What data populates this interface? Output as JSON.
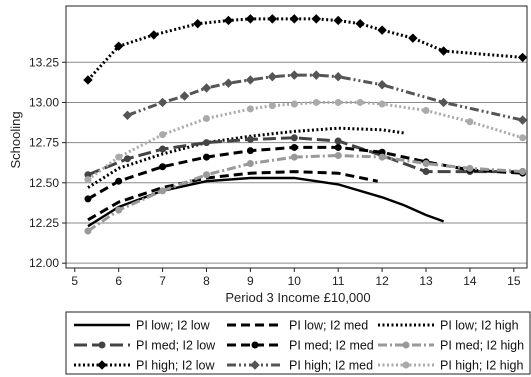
{
  "chart_data": {
    "type": "line",
    "xlabel": "Period 3 Income £10,000",
    "ylabel": "Schooling",
    "xlim": [
      4.8,
      15.3
    ],
    "ylim": [
      11.97,
      13.6
    ],
    "x_ticks": [
      "5",
      "6",
      "7",
      "8",
      "9",
      "10",
      "11",
      "12",
      "13",
      "14",
      "15"
    ],
    "y_ticks": [
      "12.00",
      "12.25",
      "12.50",
      "12.75",
      "13.00",
      "13.25"
    ],
    "grid": "horizontal",
    "legend_position": "bottom",
    "series": [
      {
        "name": "PI low; I2 low",
        "style": "solid",
        "marker": "none",
        "color": "#000000",
        "x": [
          5.3,
          6,
          7,
          8,
          9,
          10,
          11,
          12,
          12.5,
          13,
          13.4
        ],
        "y": [
          12.23,
          12.35,
          12.45,
          12.51,
          12.53,
          12.53,
          12.49,
          12.41,
          12.36,
          12.3,
          12.26
        ]
      },
      {
        "name": "PI low; I2 med",
        "style": "dashed",
        "marker": "none",
        "color": "#000000",
        "x": [
          5.3,
          6,
          7,
          8,
          9,
          10,
          11,
          11.9
        ],
        "y": [
          12.27,
          12.38,
          12.47,
          12.53,
          12.56,
          12.57,
          12.56,
          12.51
        ]
      },
      {
        "name": "PI low; I2 high",
        "style": "dotted",
        "marker": "none",
        "color": "#000000",
        "x": [
          5.3,
          6,
          7,
          8,
          9,
          10,
          11,
          12,
          12.5
        ],
        "y": [
          12.47,
          12.59,
          12.68,
          12.75,
          12.79,
          12.82,
          12.84,
          12.83,
          12.81
        ]
      },
      {
        "name": "PI med; I2 low",
        "style": "longdash",
        "marker": "circle",
        "color": "#444444",
        "x": [
          5.3,
          6.2,
          7,
          8,
          9,
          10,
          11,
          12,
          13,
          14,
          15.2
        ],
        "y": [
          12.55,
          12.65,
          12.71,
          12.75,
          12.77,
          12.78,
          12.76,
          12.67,
          12.57,
          12.57,
          12.57
        ]
      },
      {
        "name": "PI med; I2 med",
        "style": "dashed",
        "marker": "circle",
        "color": "#000000",
        "x": [
          5.3,
          6,
          7,
          8,
          9,
          10,
          11,
          12,
          13,
          14,
          15.2
        ],
        "y": [
          12.4,
          12.51,
          12.6,
          12.66,
          12.7,
          12.72,
          12.72,
          12.69,
          12.63,
          12.58,
          12.56
        ]
      },
      {
        "name": "PI med; I2 high",
        "style": "dashdot",
        "marker": "circle",
        "color": "#999999",
        "x": [
          5.3,
          6,
          7,
          8,
          9,
          10,
          11,
          12,
          13,
          14,
          15.2
        ],
        "y": [
          12.2,
          12.33,
          12.45,
          12.55,
          12.62,
          12.66,
          12.67,
          12.66,
          12.62,
          12.59,
          12.57
        ]
      },
      {
        "name": "PI high; I2 low",
        "style": "dotted",
        "marker": "diamond",
        "color": "#000000",
        "x": [
          5.3,
          6,
          6.8,
          7.8,
          8.5,
          9,
          9.5,
          10,
          10.5,
          11,
          11.5,
          12,
          12.7,
          13.4,
          15.2
        ],
        "y": [
          13.14,
          13.35,
          13.42,
          13.49,
          13.51,
          13.52,
          13.52,
          13.52,
          13.52,
          13.51,
          13.49,
          13.45,
          13.4,
          13.32,
          13.28
        ]
      },
      {
        "name": "PI high; I2 med",
        "style": "dashdotdot",
        "marker": "diamond",
        "color": "#555555",
        "x": [
          6.2,
          7,
          7.5,
          8,
          8.5,
          9,
          9.5,
          10,
          10.5,
          11,
          12,
          13.4,
          15.2
        ],
        "y": [
          12.92,
          13.0,
          13.04,
          13.09,
          13.12,
          13.14,
          13.16,
          13.17,
          13.17,
          13.16,
          13.11,
          13.0,
          12.89
        ]
      },
      {
        "name": "PI high; I2 high",
        "style": "dotted",
        "marker": "circle",
        "color": "#aaaaaa",
        "x": [
          5.3,
          6,
          7,
          8,
          9,
          9.5,
          10,
          10.5,
          11,
          11.5,
          12,
          13,
          14,
          15.2
        ],
        "y": [
          12.52,
          12.66,
          12.8,
          12.9,
          12.96,
          12.98,
          12.99,
          13.0,
          13.0,
          13.0,
          12.99,
          12.95,
          12.88,
          12.78
        ]
      }
    ]
  }
}
